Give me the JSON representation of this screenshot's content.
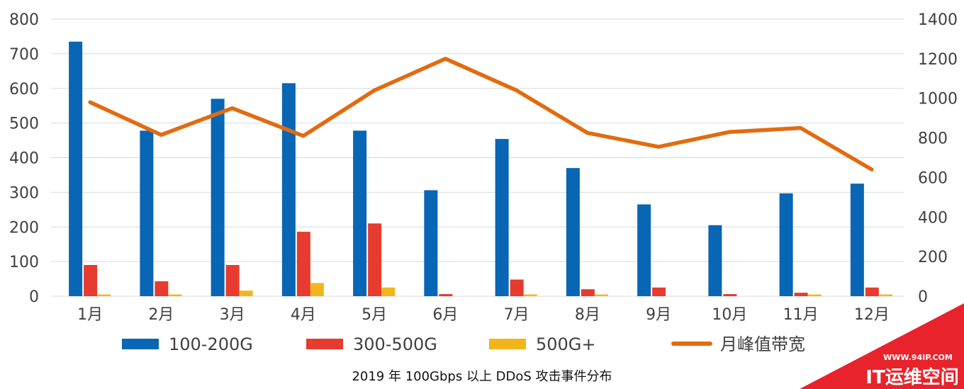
{
  "chart_data": {
    "type": "bar",
    "categories": [
      "1月",
      "2月",
      "3月",
      "4月",
      "5月",
      "6月",
      "7月",
      "8月",
      "9月",
      "10月",
      "11月",
      "12月"
    ],
    "series": [
      {
        "name": "100-200G",
        "type": "bar",
        "axis": "left",
        "color": "#0866b4",
        "values": [
          735,
          478,
          570,
          615,
          478,
          306,
          454,
          370,
          265,
          205,
          297,
          325
        ]
      },
      {
        "name": "300-500G",
        "type": "bar",
        "axis": "left",
        "color": "#e63b2e",
        "values": [
          90,
          43,
          90,
          186,
          210,
          6,
          48,
          20,
          25,
          6,
          10,
          25
        ]
      },
      {
        "name": "500G+",
        "type": "bar",
        "axis": "left",
        "color": "#f2b61d",
        "values": [
          5,
          5,
          16,
          38,
          25,
          0,
          5,
          5,
          0,
          0,
          5,
          5
        ]
      },
      {
        "name": "月峰值带宽",
        "type": "line",
        "axis": "right",
        "color": "#e26b10",
        "values": [
          980,
          815,
          950,
          810,
          1040,
          1200,
          1040,
          825,
          755,
          830,
          850,
          640
        ]
      }
    ],
    "y_left": {
      "ticks": [
        0,
        100,
        200,
        300,
        400,
        500,
        600,
        700,
        800
      ],
      "range": [
        0,
        800
      ]
    },
    "y_right": {
      "ticks": [
        0,
        200,
        400,
        600,
        800,
        1000,
        1200,
        1400
      ],
      "range": [
        0,
        1400
      ]
    },
    "grid": true,
    "legend_position": "bottom",
    "title": "2019 年 100Gbps 以上 DDoS 攻击事件分布"
  },
  "watermark": {
    "url": "WWW.94IP.COM",
    "name": "IT运维空间",
    "color": "#e8232c"
  }
}
